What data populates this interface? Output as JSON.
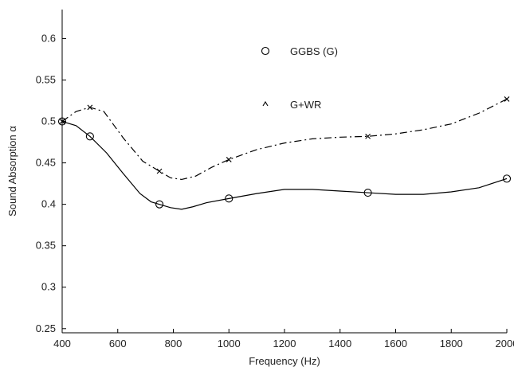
{
  "chart_data": {
    "type": "line",
    "title": "",
    "xlabel": "Frequency (Hz)",
    "ylabel": "Sound Absorption α",
    "xlim": [
      400,
      2000
    ],
    "ylim": [
      0.245,
      0.635
    ],
    "x_ticks": [
      400,
      600,
      800,
      1000,
      1200,
      1400,
      1600,
      1800,
      2000
    ],
    "x_tick_labels": [
      "400",
      "600",
      "800",
      "1000",
      "1200",
      "1400",
      "1600",
      "1800",
      "2000"
    ],
    "y_ticks": [
      0.25,
      0.3,
      0.35,
      0.4,
      0.45,
      0.5,
      0.55,
      0.6
    ],
    "y_tick_labels": [
      "0.25",
      "0.3",
      "0.35",
      "0.4",
      "0.45",
      "0.5",
      "0.55",
      "0.6"
    ],
    "grid": false,
    "legend_position": "top-center",
    "series": [
      {
        "name": "GGBS (G)",
        "marker": "circle",
        "line_style": "solid",
        "color": "#000000",
        "points": [
          [
            400,
            0.5
          ],
          [
            500,
            0.482
          ],
          [
            750,
            0.4
          ],
          [
            1000,
            0.407
          ],
          [
            1500,
            0.414
          ],
          [
            2000,
            0.431
          ]
        ],
        "curve": [
          [
            400,
            0.5
          ],
          [
            450,
            0.495
          ],
          [
            500,
            0.482
          ],
          [
            560,
            0.462
          ],
          [
            620,
            0.437
          ],
          [
            680,
            0.413
          ],
          [
            720,
            0.403
          ],
          [
            750,
            0.4
          ],
          [
            790,
            0.396
          ],
          [
            830,
            0.394
          ],
          [
            870,
            0.397
          ],
          [
            920,
            0.402
          ],
          [
            1000,
            0.407
          ],
          [
            1100,
            0.413
          ],
          [
            1200,
            0.418
          ],
          [
            1300,
            0.418
          ],
          [
            1400,
            0.416
          ],
          [
            1500,
            0.414
          ],
          [
            1600,
            0.412
          ],
          [
            1700,
            0.412
          ],
          [
            1800,
            0.415
          ],
          [
            1900,
            0.42
          ],
          [
            2000,
            0.431
          ]
        ]
      },
      {
        "name": "G+WR",
        "marker": "x",
        "line_style": "dash-dot",
        "color": "#000000",
        "points": [
          [
            400,
            0.5
          ],
          [
            500,
            0.517
          ],
          [
            750,
            0.44
          ],
          [
            1000,
            0.454
          ],
          [
            1500,
            0.482
          ],
          [
            2000,
            0.527
          ]
        ],
        "curve": [
          [
            400,
            0.5
          ],
          [
            450,
            0.512
          ],
          [
            500,
            0.517
          ],
          [
            550,
            0.512
          ],
          [
            620,
            0.48
          ],
          [
            690,
            0.452
          ],
          [
            750,
            0.44
          ],
          [
            790,
            0.432
          ],
          [
            830,
            0.43
          ],
          [
            880,
            0.434
          ],
          [
            940,
            0.445
          ],
          [
            1000,
            0.454
          ],
          [
            1100,
            0.466
          ],
          [
            1200,
            0.474
          ],
          [
            1300,
            0.479
          ],
          [
            1400,
            0.481
          ],
          [
            1500,
            0.482
          ],
          [
            1600,
            0.485
          ],
          [
            1700,
            0.49
          ],
          [
            1800,
            0.497
          ],
          [
            1900,
            0.51
          ],
          [
            2000,
            0.527
          ]
        ]
      }
    ]
  }
}
